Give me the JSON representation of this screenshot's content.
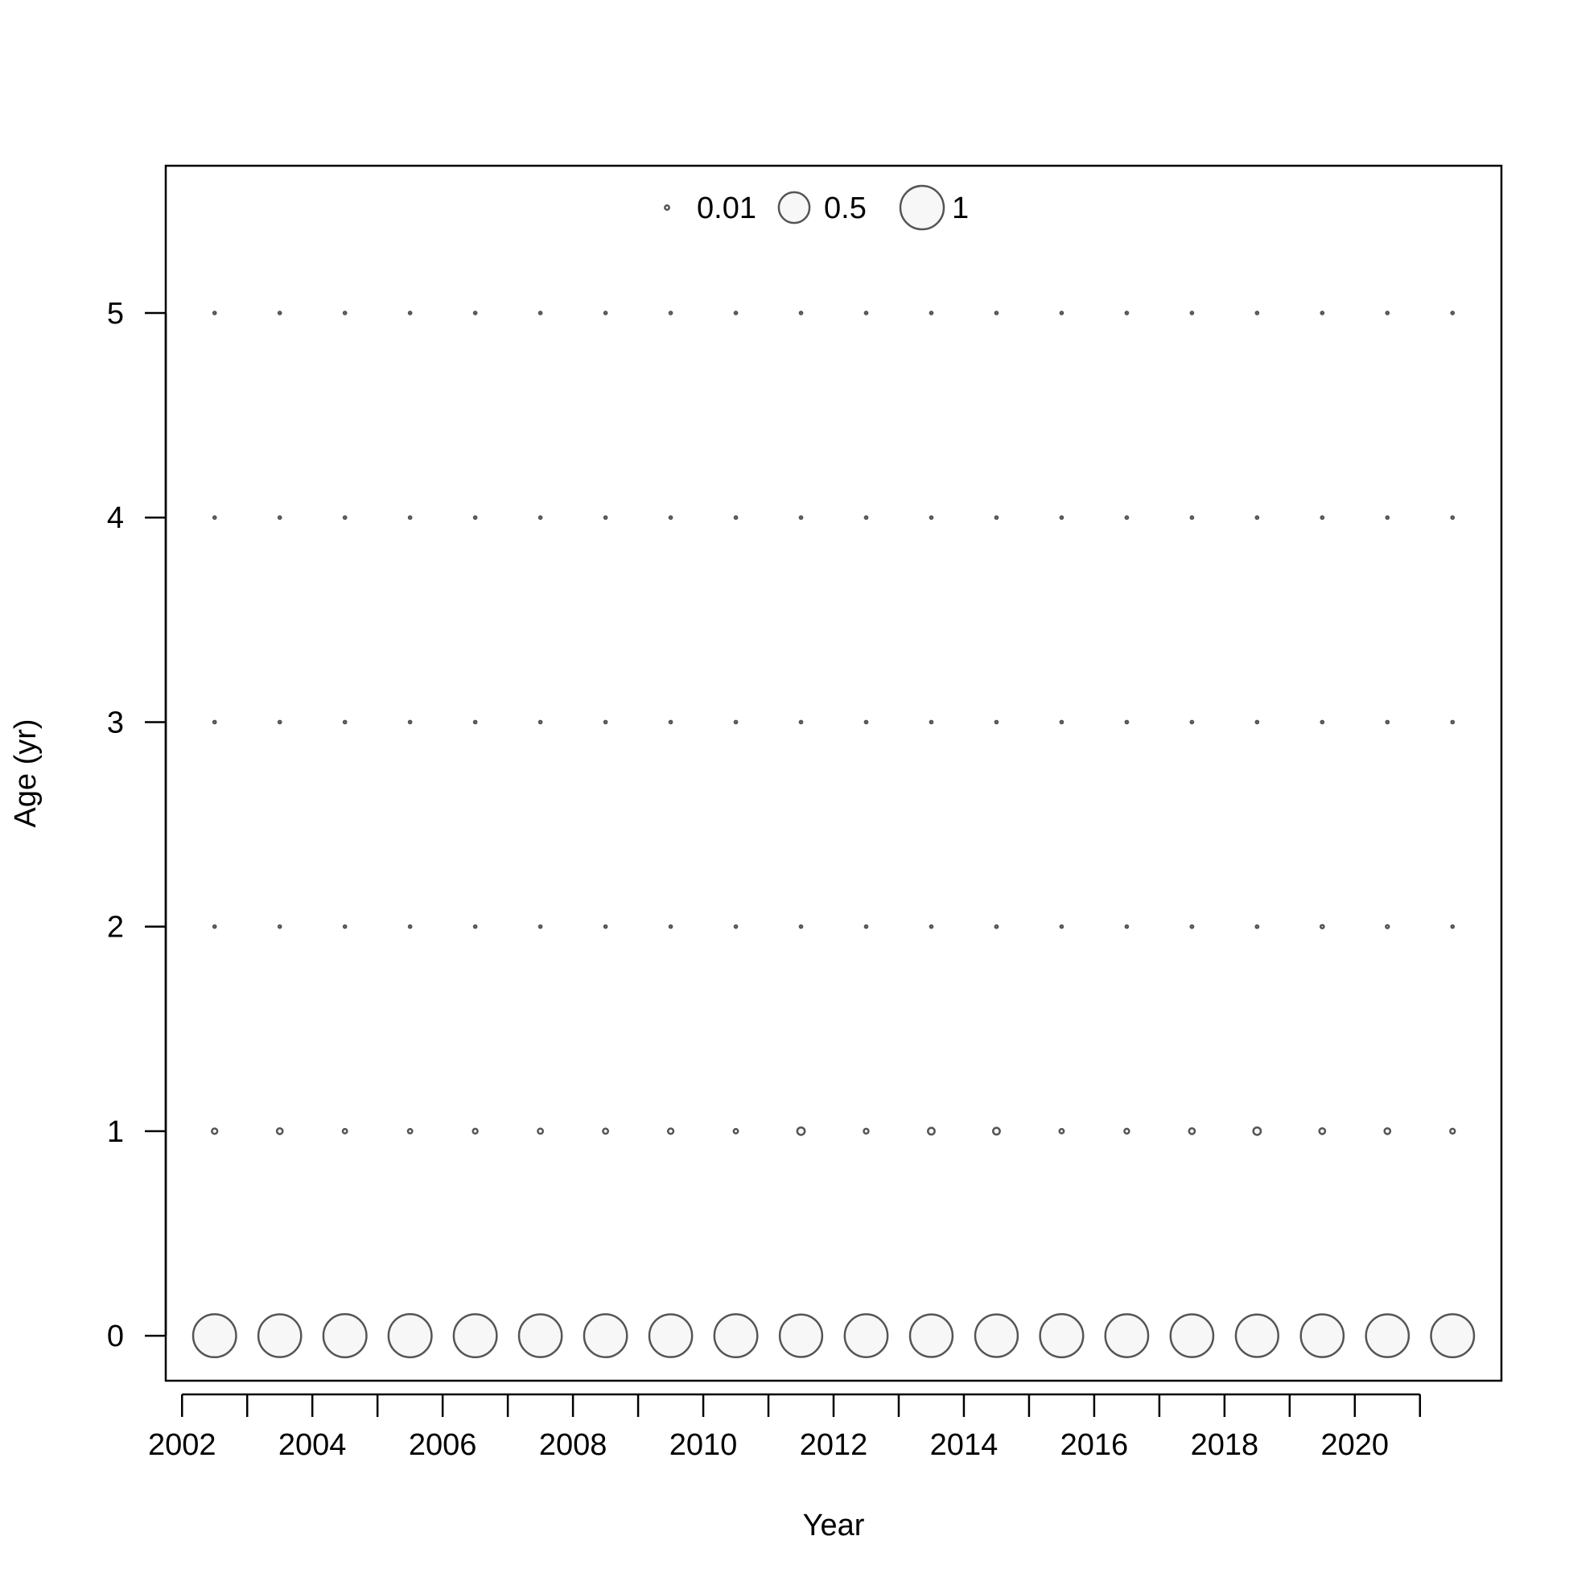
{
  "chart_data": {
    "type": "scatter",
    "subtype": "bubble",
    "xlabel": "Year",
    "ylabel": "Age (yr)",
    "x_ticks": [
      2002,
      2004,
      2006,
      2008,
      2010,
      2012,
      2014,
      2016,
      2018,
      2020
    ],
    "y_ticks": [
      0,
      1,
      2,
      3,
      4,
      5
    ],
    "xlim": [
      2001.75,
      2022.25
    ],
    "ylim": [
      -0.22,
      5.72
    ],
    "grid": false,
    "legend": {
      "placement": "top-center",
      "entries": [
        {
          "label": "0.01",
          "value": 0.01
        },
        {
          "label": "0.5",
          "value": 0.5
        },
        {
          "label": "1",
          "value": 1
        }
      ]
    },
    "bubble_fill": "#f7f7f7",
    "bubble_stroke": "#555555",
    "years": [
      2002.5,
      2003.5,
      2004.5,
      2005.5,
      2006.5,
      2007.5,
      2008.5,
      2009.5,
      2010.5,
      2011.5,
      2012.5,
      2013.5,
      2014.5,
      2015.5,
      2016.5,
      2017.5,
      2018.5,
      2019.5,
      2020.5,
      2021.5
    ],
    "ages": [
      0,
      1,
      2,
      3,
      4,
      5
    ],
    "values": [
      [
        0.98,
        0.97,
        0.985,
        0.985,
        0.98,
        0.97,
        0.975,
        0.97,
        0.98,
        0.955,
        0.975,
        0.96,
        0.96,
        0.985,
        0.975,
        0.97,
        0.955,
        0.97,
        0.97,
        0.98
      ],
      [
        0.016,
        0.018,
        0.01,
        0.01,
        0.012,
        0.014,
        0.014,
        0.016,
        0.01,
        0.03,
        0.012,
        0.024,
        0.024,
        0.01,
        0.012,
        0.018,
        0.03,
        0.018,
        0.018,
        0.012
      ],
      [
        0.002,
        0.003,
        0.003,
        0.002,
        0.003,
        0.003,
        0.002,
        0.003,
        0.002,
        0.003,
        0.002,
        0.003,
        0.004,
        0.003,
        0.003,
        0.004,
        0.004,
        0.006,
        0.005,
        0.002
      ],
      [
        0.001,
        0.001,
        0.001,
        0.001,
        0.001,
        0.001,
        0.001,
        0.001,
        0.001,
        0.001,
        0.001,
        0.001,
        0.001,
        0.001,
        0.001,
        0.001,
        0.001,
        0.001,
        0.001,
        0.001
      ],
      [
        0.001,
        0.001,
        0.001,
        0.001,
        0.001,
        0.001,
        0.001,
        0.001,
        0.001,
        0.001,
        0.001,
        0.001,
        0.001,
        0.001,
        0.001,
        0.001,
        0.001,
        0.001,
        0.001,
        0.001
      ],
      [
        0.001,
        0.001,
        0.001,
        0.001,
        0.001,
        0.001,
        0.001,
        0.001,
        0.001,
        0.001,
        0.001,
        0.001,
        0.001,
        0.001,
        0.001,
        0.001,
        0.001,
        0.001,
        0.001,
        0.001
      ]
    ]
  }
}
